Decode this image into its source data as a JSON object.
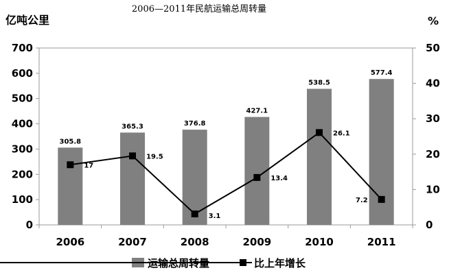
{
  "chart_data": {
    "type": "bar",
    "title": "2006—2011年民航运输总周转量",
    "ylabel": "亿吨公里",
    "y2label": "%",
    "categories": [
      "2006",
      "2007",
      "2008",
      "2009",
      "2010",
      "2011"
    ],
    "ylim": [
      0,
      700
    ],
    "yticks": [
      "0",
      "100",
      "200",
      "300",
      "400",
      "500",
      "600",
      "700"
    ],
    "y2lim": [
      0,
      50
    ],
    "y2ticks": [
      "0",
      "10",
      "20",
      "30",
      "40",
      "50"
    ],
    "series": [
      {
        "name": "运输总周转量",
        "type": "bar",
        "axis": "left",
        "color": "#808080",
        "values": [
          305.8,
          365.3,
          376.8,
          427.1,
          538.5,
          577.4
        ],
        "labels": [
          "305.8",
          "365.3",
          "376.8",
          "427.1",
          "538.5",
          "577.4"
        ]
      },
      {
        "name": "比上年增长",
        "type": "line",
        "axis": "right",
        "color": "#000000",
        "marker": "square",
        "values": [
          17,
          19.5,
          3.1,
          13.4,
          26.1,
          7.2
        ],
        "labels": [
          "17",
          "19.5",
          "3.1",
          "13.4",
          "26.1",
          "7.2"
        ]
      }
    ],
    "legend_position": "bottom",
    "grid": false
  }
}
